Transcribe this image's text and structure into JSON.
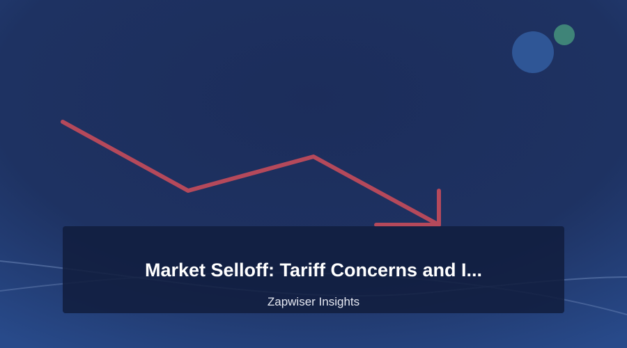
{
  "article": {
    "title": "Market Selloff: Tariff Concerns and I...",
    "source": "Zapwiser Insights"
  },
  "icons": {
    "trend": "downtrend-arrow-icon",
    "bubble_large": "circle-decoration",
    "bubble_small": "circle-decoration"
  },
  "colors": {
    "background": "#1d2f5f",
    "background_edge": "#284a8a",
    "trend_line": "#b5495b",
    "bubble_large": "#2f5696",
    "bubble_small": "#3f8478",
    "panel": "#111e3f",
    "title_text": "#ffffff",
    "source_text": "#e6e9f2"
  }
}
